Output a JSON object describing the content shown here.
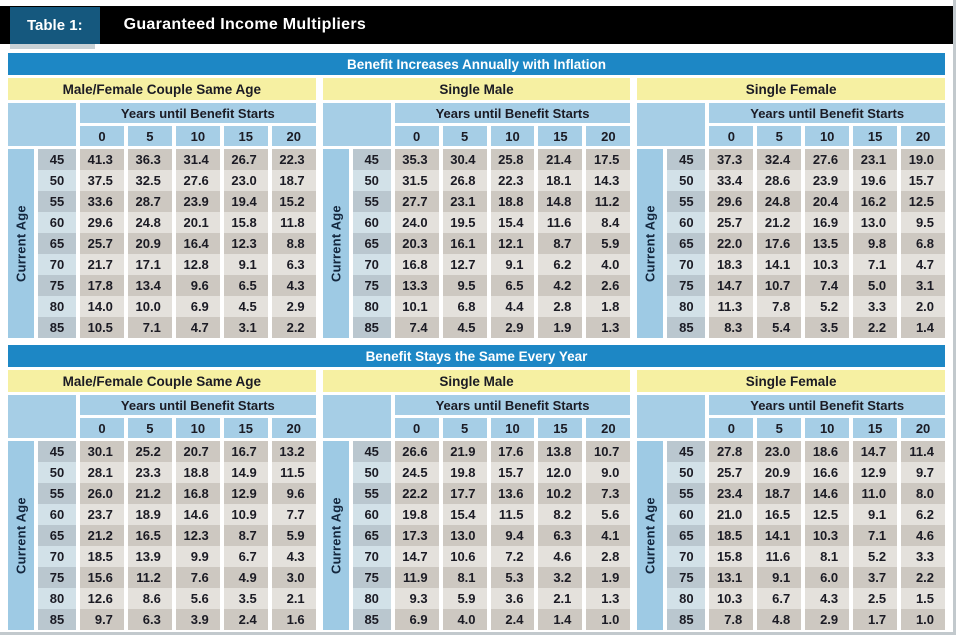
{
  "title_bar": {
    "tag": "Table 1:",
    "title": "Guaranteed Income Multipliers"
  },
  "row_header_label": "Current Age",
  "col_header_label": "Years until Benefit Starts",
  "col_years": [
    "0",
    "5",
    "10",
    "15",
    "20"
  ],
  "ages": [
    "45",
    "50",
    "55",
    "60",
    "65",
    "70",
    "75",
    "80",
    "85"
  ],
  "colors": {
    "title_bar_black": "#000000",
    "tag_blue": "#15587e",
    "banner_blue": "#1d87c5",
    "header_yellow": "#f6f0a2",
    "header_light_blue": "#a6cee6",
    "age_strip_blue": "#9ecae4",
    "age_row_dark": "#bac7cf",
    "age_row_light": "#d2e1e8",
    "value_row_dark": "#cdc8c1",
    "value_row_light": "#e4e1dc"
  },
  "sections": [
    {
      "banner": "Benefit Increases Annually with Inflation",
      "groups": [
        {
          "title": "Male/Female Couple Same Age",
          "rows": [
            [
              "41.3",
              "36.3",
              "31.4",
              "26.7",
              "22.3"
            ],
            [
              "37.5",
              "32.5",
              "27.6",
              "23.0",
              "18.7"
            ],
            [
              "33.6",
              "28.7",
              "23.9",
              "19.4",
              "15.2"
            ],
            [
              "29.6",
              "24.8",
              "20.1",
              "15.8",
              "11.8"
            ],
            [
              "25.7",
              "20.9",
              "16.4",
              "12.3",
              "8.8"
            ],
            [
              "21.7",
              "17.1",
              "12.8",
              "9.1",
              "6.3"
            ],
            [
              "17.8",
              "13.4",
              "9.6",
              "6.5",
              "4.3"
            ],
            [
              "14.0",
              "10.0",
              "6.9",
              "4.5",
              "2.9"
            ],
            [
              "10.5",
              "7.1",
              "4.7",
              "3.1",
              "2.2"
            ]
          ]
        },
        {
          "title": "Single Male",
          "rows": [
            [
              "35.3",
              "30.4",
              "25.8",
              "21.4",
              "17.5"
            ],
            [
              "31.5",
              "26.8",
              "22.3",
              "18.1",
              "14.3"
            ],
            [
              "27.7",
              "23.1",
              "18.8",
              "14.8",
              "11.2"
            ],
            [
              "24.0",
              "19.5",
              "15.4",
              "11.6",
              "8.4"
            ],
            [
              "20.3",
              "16.1",
              "12.1",
              "8.7",
              "5.9"
            ],
            [
              "16.8",
              "12.7",
              "9.1",
              "6.2",
              "4.0"
            ],
            [
              "13.3",
              "9.5",
              "6.5",
              "4.2",
              "2.6"
            ],
            [
              "10.1",
              "6.8",
              "4.4",
              "2.8",
              "1.8"
            ],
            [
              "7.4",
              "4.5",
              "2.9",
              "1.9",
              "1.3"
            ]
          ]
        },
        {
          "title": "Single Female",
          "rows": [
            [
              "37.3",
              "32.4",
              "27.6",
              "23.1",
              "19.0"
            ],
            [
              "33.4",
              "28.6",
              "23.9",
              "19.6",
              "15.7"
            ],
            [
              "29.6",
              "24.8",
              "20.4",
              "16.2",
              "12.5"
            ],
            [
              "25.7",
              "21.2",
              "16.9",
              "13.0",
              "9.5"
            ],
            [
              "22.0",
              "17.6",
              "13.5",
              "9.8",
              "6.8"
            ],
            [
              "18.3",
              "14.1",
              "10.3",
              "7.1",
              "4.7"
            ],
            [
              "14.7",
              "10.7",
              "7.4",
              "5.0",
              "3.1"
            ],
            [
              "11.3",
              "7.8",
              "5.2",
              "3.3",
              "2.0"
            ],
            [
              "8.3",
              "5.4",
              "3.5",
              "2.2",
              "1.4"
            ]
          ]
        }
      ]
    },
    {
      "banner": "Benefit Stays the Same Every Year",
      "groups": [
        {
          "title": "Male/Female Couple Same Age",
          "rows": [
            [
              "30.1",
              "25.2",
              "20.7",
              "16.7",
              "13.2"
            ],
            [
              "28.1",
              "23.3",
              "18.8",
              "14.9",
              "11.5"
            ],
            [
              "26.0",
              "21.2",
              "16.8",
              "12.9",
              "9.6"
            ],
            [
              "23.7",
              "18.9",
              "14.6",
              "10.9",
              "7.7"
            ],
            [
              "21.2",
              "16.5",
              "12.3",
              "8.7",
              "5.9"
            ],
            [
              "18.5",
              "13.9",
              "9.9",
              "6.7",
              "4.3"
            ],
            [
              "15.6",
              "11.2",
              "7.6",
              "4.9",
              "3.0"
            ],
            [
              "12.6",
              "8.6",
              "5.6",
              "3.5",
              "2.1"
            ],
            [
              "9.7",
              "6.3",
              "3.9",
              "2.4",
              "1.6"
            ]
          ]
        },
        {
          "title": "Single Male",
          "rows": [
            [
              "26.6",
              "21.9",
              "17.6",
              "13.8",
              "10.7"
            ],
            [
              "24.5",
              "19.8",
              "15.7",
              "12.0",
              "9.0"
            ],
            [
              "22.2",
              "17.7",
              "13.6",
              "10.2",
              "7.3"
            ],
            [
              "19.8",
              "15.4",
              "11.5",
              "8.2",
              "5.6"
            ],
            [
              "17.3",
              "13.0",
              "9.4",
              "6.3",
              "4.1"
            ],
            [
              "14.7",
              "10.6",
              "7.2",
              "4.6",
              "2.8"
            ],
            [
              "11.9",
              "8.1",
              "5.3",
              "3.2",
              "1.9"
            ],
            [
              "9.3",
              "5.9",
              "3.6",
              "2.1",
              "1.3"
            ],
            [
              "6.9",
              "4.0",
              "2.4",
              "1.4",
              "1.0"
            ]
          ]
        },
        {
          "title": "Single Female",
          "rows": [
            [
              "27.8",
              "23.0",
              "18.6",
              "14.7",
              "11.4"
            ],
            [
              "25.7",
              "20.9",
              "16.6",
              "12.9",
              "9.7"
            ],
            [
              "23.4",
              "18.7",
              "14.6",
              "11.0",
              "8.0"
            ],
            [
              "21.0",
              "16.5",
              "12.5",
              "9.1",
              "6.2"
            ],
            [
              "18.5",
              "14.1",
              "10.3",
              "7.1",
              "4.6"
            ],
            [
              "15.8",
              "11.6",
              "8.1",
              "5.2",
              "3.3"
            ],
            [
              "13.1",
              "9.1",
              "6.0",
              "3.7",
              "2.2"
            ],
            [
              "10.3",
              "6.7",
              "4.3",
              "2.5",
              "1.5"
            ],
            [
              "7.8",
              "4.8",
              "2.9",
              "1.7",
              "1.0"
            ]
          ]
        }
      ]
    }
  ]
}
